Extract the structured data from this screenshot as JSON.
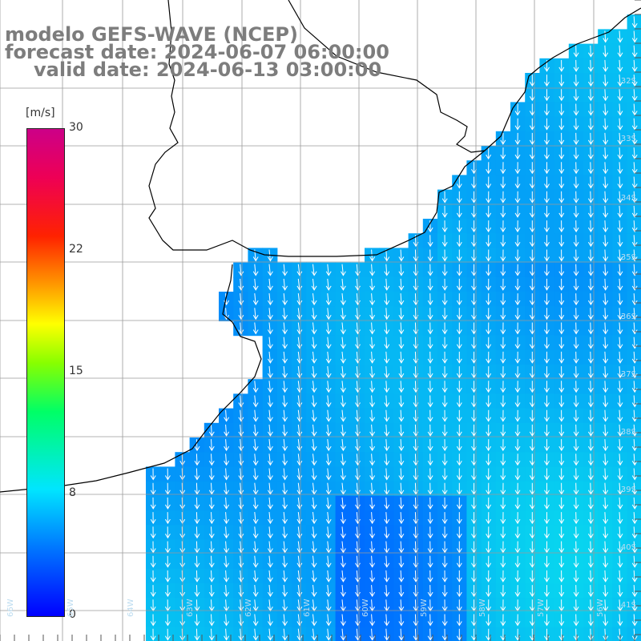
{
  "title": {
    "line1": "modelo GEFS-WAVE (NCEP)",
    "line2": "forecast date: 2024-06-07 06:00:00",
    "line3": "valid date: 2024-06-13 03:00:00"
  },
  "colorbar": {
    "unit": "[m/s]",
    "min": 0,
    "max": 30,
    "ticks": [
      {
        "label": "30"
      },
      {
        "label": "22"
      },
      {
        "label": "15"
      },
      {
        "label": "8"
      },
      {
        "label": "0"
      }
    ]
  },
  "colors": {
    "land": "#ffffff",
    "coastline": "#000000",
    "grid": "#9a9a9a",
    "arrows": "#ffffff",
    "title_text": "#7d7d7d"
  },
  "latitude_labels": [
    "32S",
    "33S",
    "34S",
    "35S",
    "36S",
    "37S",
    "38S",
    "39S",
    "40S",
    "41S"
  ],
  "longitude_labels": [
    "66W",
    "65W",
    "64W",
    "63W",
    "62W",
    "61W",
    "60W",
    "59W",
    "58W",
    "57W",
    "56W"
  ]
}
